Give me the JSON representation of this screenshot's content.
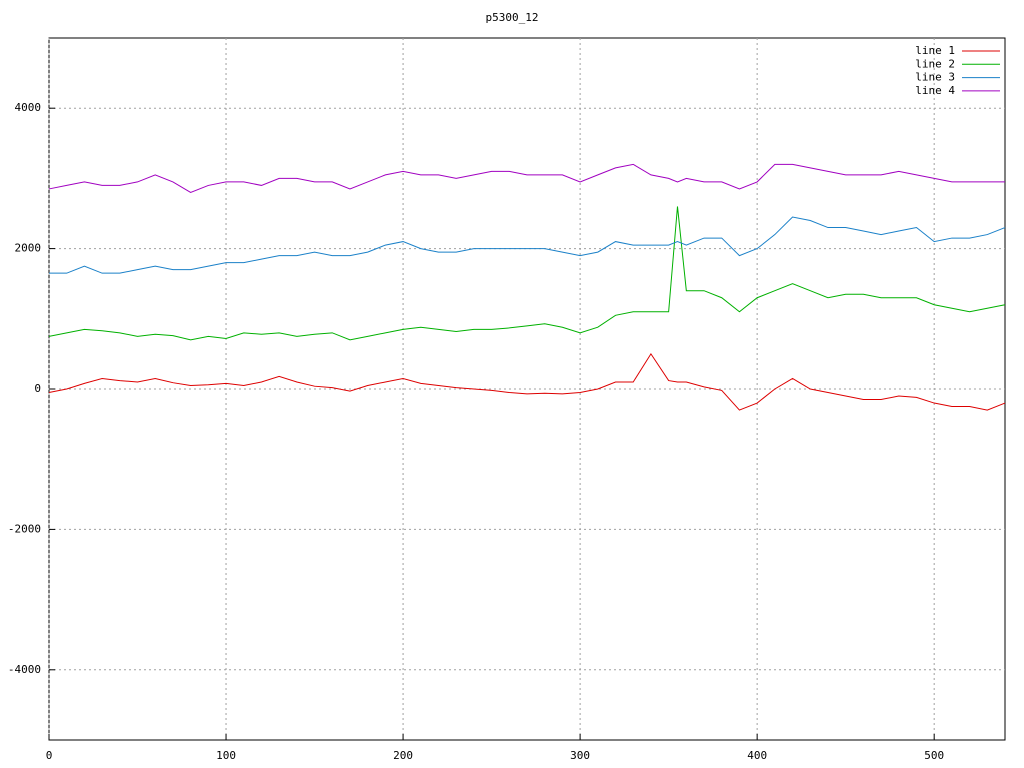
{
  "chart_data": {
    "type": "line",
    "title": "p5300_12",
    "x": [
      0,
      10,
      20,
      30,
      40,
      50,
      60,
      70,
      80,
      90,
      100,
      110,
      120,
      130,
      140,
      150,
      160,
      170,
      180,
      190,
      200,
      210,
      220,
      230,
      240,
      250,
      260,
      270,
      280,
      290,
      300,
      310,
      320,
      330,
      340,
      350,
      355,
      360,
      370,
      380,
      390,
      400,
      410,
      420,
      430,
      440,
      450,
      460,
      470,
      480,
      490,
      500,
      510,
      520,
      530,
      540
    ],
    "series": [
      {
        "name": "line 1",
        "color": "#dd0000",
        "values": [
          -50,
          0,
          80,
          150,
          120,
          100,
          150,
          90,
          50,
          60,
          80,
          50,
          100,
          180,
          100,
          40,
          20,
          -30,
          50,
          100,
          150,
          80,
          50,
          20,
          0,
          -20,
          -50,
          -70,
          -60,
          -70,
          -50,
          0,
          100,
          100,
          500,
          120,
          100,
          100,
          30,
          -20,
          -300,
          -200,
          0,
          150,
          0,
          -50,
          -100,
          -150,
          -150,
          -100,
          -120,
          -200,
          -250,
          -250,
          -300,
          -200
        ]
      },
      {
        "name": "line 2",
        "color": "#00b000",
        "values": [
          750,
          800,
          850,
          830,
          800,
          750,
          780,
          760,
          700,
          750,
          720,
          800,
          780,
          800,
          750,
          780,
          800,
          700,
          750,
          800,
          850,
          880,
          850,
          820,
          850,
          850,
          870,
          900,
          930,
          880,
          800,
          880,
          1050,
          1100,
          1100,
          1100,
          2600,
          1400,
          1400,
          1300,
          1100,
          1300,
          1400,
          1500,
          1400,
          1300,
          1350,
          1350,
          1300,
          1300,
          1300,
          1200,
          1150,
          1100,
          1150,
          1200
        ]
      },
      {
        "name": "line 3",
        "color": "#1a80c8",
        "values": [
          1650,
          1650,
          1750,
          1650,
          1650,
          1700,
          1750,
          1700,
          1700,
          1750,
          1800,
          1800,
          1850,
          1900,
          1900,
          1950,
          1900,
          1900,
          1950,
          2050,
          2100,
          2000,
          1950,
          1950,
          2000,
          2000,
          2000,
          2000,
          2000,
          1950,
          1900,
          1950,
          2100,
          2050,
          2050,
          2050,
          2100,
          2050,
          2150,
          2150,
          1900,
          2000,
          2200,
          2450,
          2400,
          2300,
          2300,
          2250,
          2200,
          2250,
          2300,
          2100,
          2150,
          2150,
          2200,
          2300
        ]
      },
      {
        "name": "line 4",
        "color": "#a000c0",
        "values": [
          2850,
          2900,
          2950,
          2900,
          2900,
          2950,
          3050,
          2950,
          2800,
          2900,
          2950,
          2950,
          2900,
          3000,
          3000,
          2950,
          2950,
          2850,
          2950,
          3050,
          3100,
          3050,
          3050,
          3000,
          3050,
          3100,
          3100,
          3050,
          3050,
          3050,
          2950,
          3050,
          3150,
          3200,
          3050,
          3000,
          2950,
          3000,
          2950,
          2950,
          2850,
          2950,
          3200,
          3200,
          3150,
          3100,
          3050,
          3050,
          3050,
          3100,
          3050,
          3000,
          2950,
          2950,
          2950,
          2950
        ]
      }
    ],
    "xlim": [
      0,
      540
    ],
    "ylim": [
      -5000,
      5000
    ],
    "xticks": [
      0,
      100,
      200,
      300,
      400,
      500
    ],
    "yticks": [
      -4000,
      -2000,
      0,
      2000,
      4000
    ],
    "grid": true,
    "legend": "top-right"
  }
}
